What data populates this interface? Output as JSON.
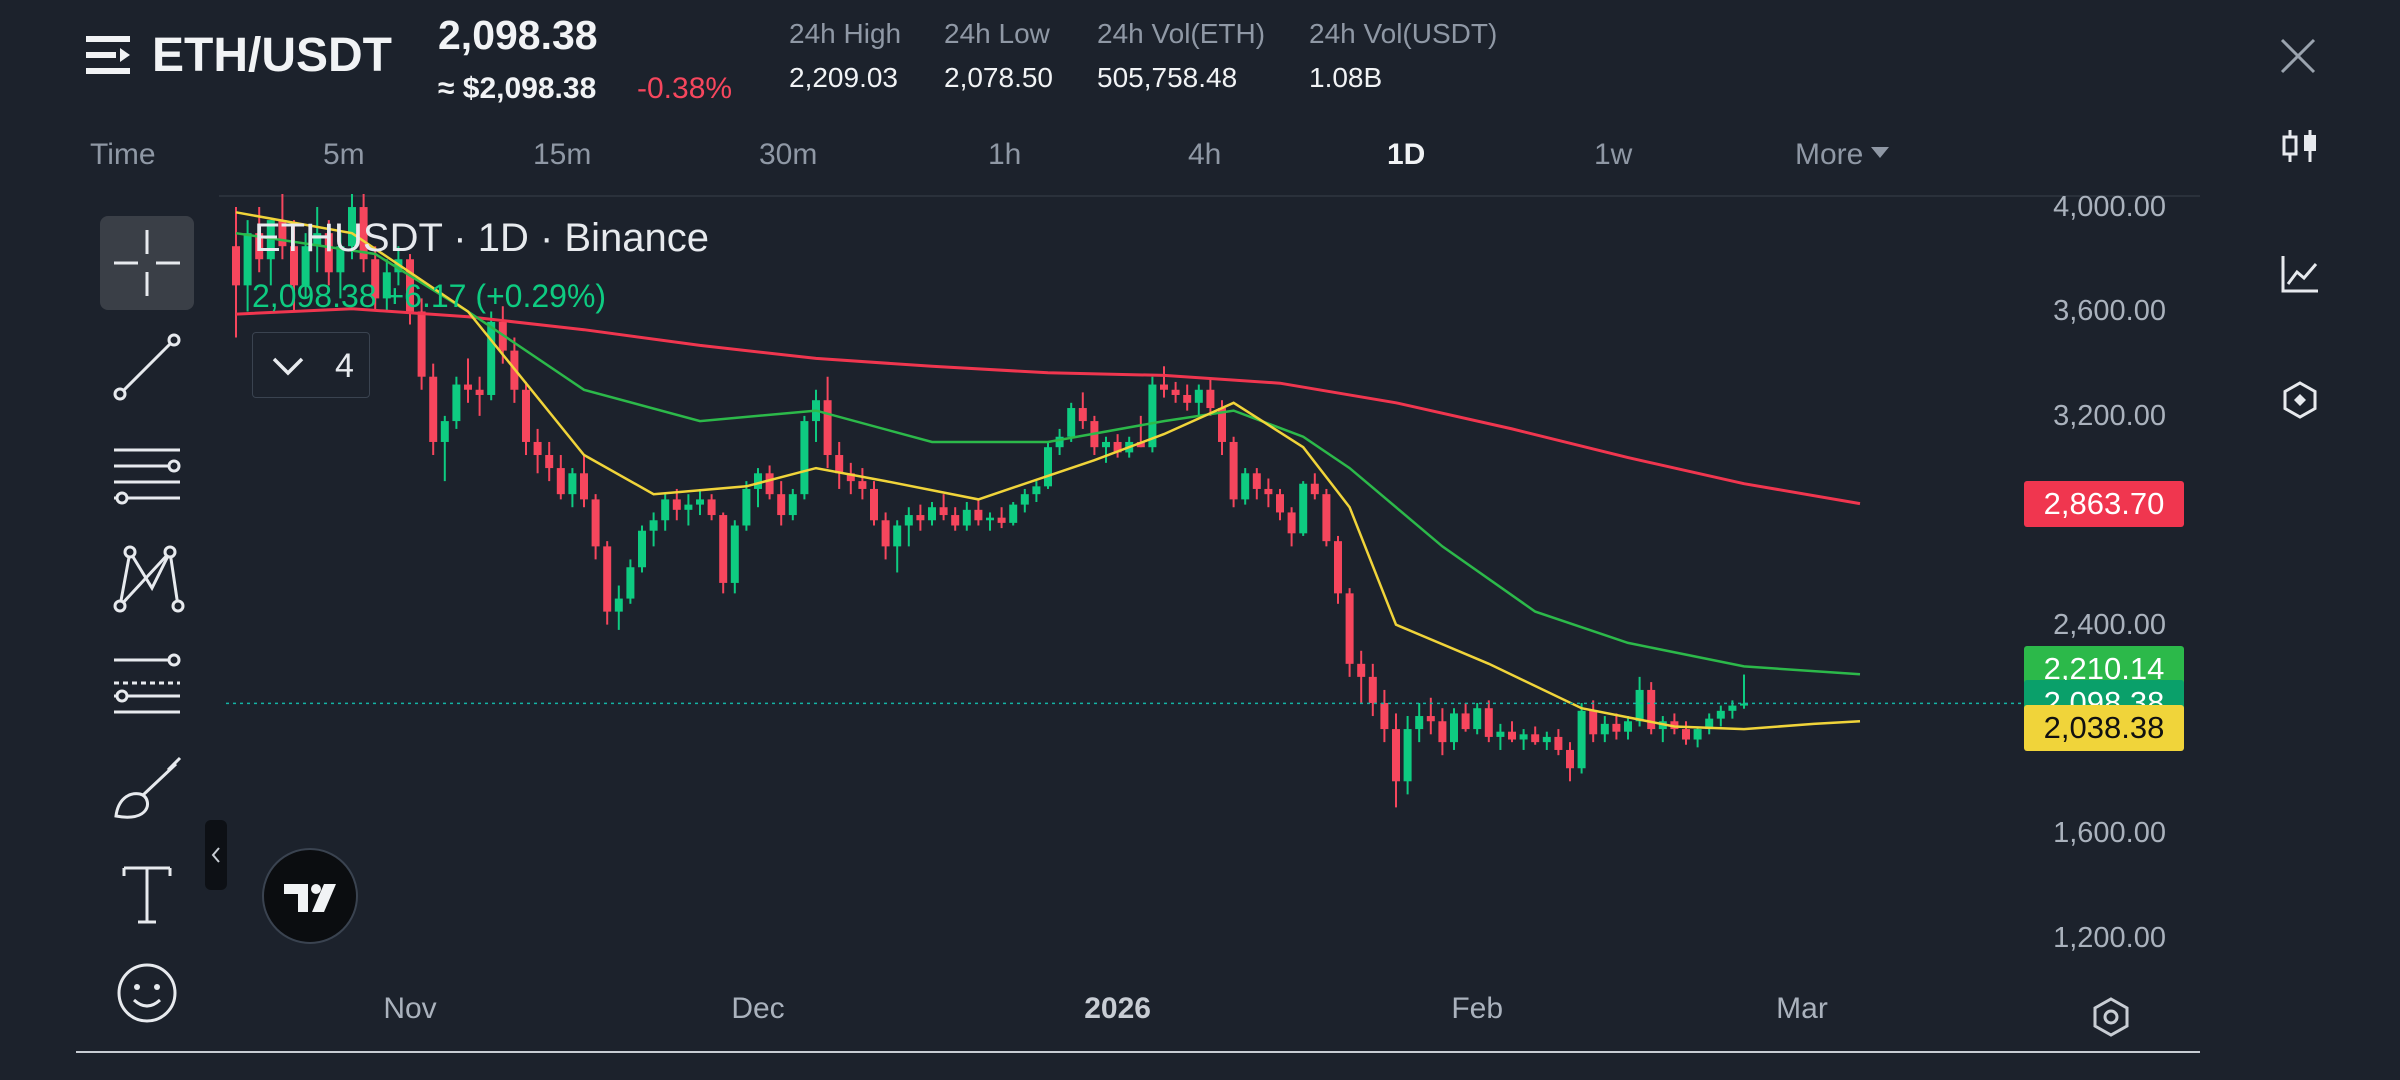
{
  "header": {
    "symbol": "ETH/USDT",
    "last_price": "2,098.38",
    "usd_price": "≈ $2,098.38",
    "change_pct": "-0.38%",
    "stats": [
      {
        "label": "24h High",
        "value": "2,209.03"
      },
      {
        "label": "24h Low",
        "value": "2,078.50"
      },
      {
        "label": "24h Vol(ETH)",
        "value": "505,758.48"
      },
      {
        "label": "24h Vol(USDT)",
        "value": "1.08B"
      }
    ]
  },
  "timeframes": {
    "items": [
      "Time",
      "5m",
      "15m",
      "30m",
      "1h",
      "4h",
      "1D",
      "1w"
    ],
    "active": "1D",
    "more_label": "More"
  },
  "chart_legend": {
    "title": "ETHUSDT · 1D · Binance",
    "ohlc_line": "2,098.38  +6.17 (+0.29%)",
    "indicator_count": "4"
  },
  "price_tags": {
    "ma_long": "2,863.70",
    "ma_mid": "2,210.14",
    "last": "2,098.38",
    "ma_short": "2,038.38"
  },
  "colors": {
    "up": "#0ecb81",
    "down": "#f6465d",
    "ma_short": "#f0d43a",
    "ma_mid": "#2cb94a",
    "ma_long": "#f0364f",
    "price_line": "#14b3a4"
  },
  "icons": {
    "left_toolbar": [
      "crosshair-icon",
      "trendline-icon",
      "parallel-lines-icon",
      "pattern-icon",
      "fib-icon",
      "brush-icon",
      "text-icon",
      "emoji-icon"
    ],
    "right_rail": [
      "candles-icon",
      "indicator-icon",
      "layers-icon"
    ]
  },
  "chart_data": {
    "type": "candlestick",
    "title": "ETHUSDT · 1D · Binance",
    "ylim": [
      1100,
      4050
    ],
    "y_ticks": [
      {
        "value": 4000,
        "label": "4,000.00"
      },
      {
        "value": 3600,
        "label": "3,600.00"
      },
      {
        "value": 3200,
        "label": "3,200.00"
      },
      {
        "value": 2400,
        "label": "2,400.00"
      },
      {
        "value": 1600,
        "label": "1,600.00"
      },
      {
        "value": 1200,
        "label": "1,200.00"
      }
    ],
    "x_ticks": [
      {
        "label": "Nov",
        "bold": false,
        "index": 15
      },
      {
        "label": "Dec",
        "bold": false,
        "index": 45
      },
      {
        "label": "2026",
        "bold": true,
        "index": 76
      },
      {
        "label": "Feb",
        "bold": false,
        "index": 107
      },
      {
        "label": "Mar",
        "bold": false,
        "index": 135
      }
    ],
    "candles": [
      [
        3850,
        4000,
        3500,
        3700
      ],
      [
        3700,
        3950,
        3600,
        3900
      ],
      [
        3900,
        4000,
        3750,
        3800
      ],
      [
        3800,
        3950,
        3700,
        3950
      ],
      [
        3950,
        4050,
        3800,
        3850
      ],
      [
        3850,
        3950,
        3600,
        3700
      ],
      [
        3700,
        3900,
        3650,
        3850
      ],
      [
        3850,
        4000,
        3750,
        3900
      ],
      [
        3900,
        3950,
        3700,
        3750
      ],
      [
        3750,
        3900,
        3650,
        3850
      ],
      [
        3850,
        4050,
        3800,
        4000
      ],
      [
        4000,
        4050,
        3750,
        3800
      ],
      [
        3800,
        3850,
        3600,
        3650
      ],
      [
        3650,
        3800,
        3600,
        3750
      ],
      [
        3750,
        3850,
        3700,
        3800
      ],
      [
        3800,
        3820,
        3550,
        3600
      ],
      [
        3600,
        3650,
        3300,
        3350
      ],
      [
        3350,
        3400,
        3050,
        3100
      ],
      [
        3100,
        3200,
        2950,
        3180
      ],
      [
        3180,
        3350,
        3150,
        3320
      ],
      [
        3320,
        3420,
        3250,
        3300
      ],
      [
        3300,
        3350,
        3200,
        3280
      ],
      [
        3280,
        3600,
        3260,
        3560
      ],
      [
        3560,
        3620,
        3400,
        3450
      ],
      [
        3450,
        3500,
        3250,
        3300
      ],
      [
        3300,
        3330,
        3050,
        3100
      ],
      [
        3100,
        3150,
        2980,
        3050
      ],
      [
        3050,
        3100,
        2950,
        3000
      ],
      [
        3000,
        3050,
        2880,
        2900
      ],
      [
        2900,
        3000,
        2850,
        2980
      ],
      [
        2980,
        3050,
        2850,
        2880
      ],
      [
        2880,
        2900,
        2650,
        2700
      ],
      [
        2700,
        2720,
        2400,
        2450
      ],
      [
        2450,
        2550,
        2380,
        2500
      ],
      [
        2500,
        2650,
        2480,
        2620
      ],
      [
        2620,
        2780,
        2600,
        2760
      ],
      [
        2760,
        2830,
        2700,
        2800
      ],
      [
        2800,
        2900,
        2760,
        2880
      ],
      [
        2880,
        2920,
        2800,
        2840
      ],
      [
        2840,
        2900,
        2780,
        2860
      ],
      [
        2860,
        2920,
        2820,
        2880
      ],
      [
        2880,
        2900,
        2800,
        2820
      ],
      [
        2820,
        2830,
        2520,
        2560
      ],
      [
        2560,
        2800,
        2520,
        2780
      ],
      [
        2780,
        2950,
        2760,
        2920
      ],
      [
        2920,
        3000,
        2850,
        2980
      ],
      [
        2980,
        3010,
        2880,
        2900
      ],
      [
        2900,
        2950,
        2780,
        2820
      ],
      [
        2820,
        2920,
        2800,
        2900
      ],
      [
        2900,
        3200,
        2880,
        3180
      ],
      [
        3180,
        3300,
        3100,
        3260
      ],
      [
        3260,
        3350,
        3000,
        3050
      ],
      [
        3050,
        3100,
        2920,
        2980
      ],
      [
        2980,
        3020,
        2900,
        2950
      ],
      [
        2950,
        3000,
        2880,
        2920
      ],
      [
        2920,
        2950,
        2780,
        2800
      ],
      [
        2800,
        2830,
        2650,
        2700
      ],
      [
        2700,
        2800,
        2600,
        2780
      ],
      [
        2780,
        2850,
        2700,
        2820
      ],
      [
        2820,
        2860,
        2760,
        2800
      ],
      [
        2800,
        2870,
        2780,
        2850
      ],
      [
        2850,
        2900,
        2800,
        2820
      ],
      [
        2820,
        2850,
        2760,
        2780
      ],
      [
        2780,
        2870,
        2760,
        2840
      ],
      [
        2840,
        2880,
        2780,
        2800
      ],
      [
        2800,
        2830,
        2760,
        2810
      ],
      [
        2810,
        2850,
        2770,
        2790
      ],
      [
        2790,
        2870,
        2780,
        2860
      ],
      [
        2860,
        2920,
        2830,
        2900
      ],
      [
        2900,
        2950,
        2870,
        2930
      ],
      [
        2930,
        3100,
        2920,
        3080
      ],
      [
        3080,
        3150,
        3050,
        3120
      ],
      [
        3120,
        3250,
        3100,
        3230
      ],
      [
        3230,
        3290,
        3150,
        3180
      ],
      [
        3180,
        3200,
        3050,
        3080
      ],
      [
        3080,
        3120,
        3020,
        3100
      ],
      [
        3100,
        3130,
        3040,
        3060
      ],
      [
        3060,
        3120,
        3040,
        3100
      ],
      [
        3100,
        3200,
        3080,
        3080
      ],
      [
        3080,
        3350,
        3060,
        3320
      ],
      [
        3320,
        3390,
        3270,
        3300
      ],
      [
        3300,
        3330,
        3250,
        3280
      ],
      [
        3280,
        3320,
        3220,
        3250
      ],
      [
        3250,
        3320,
        3200,
        3300
      ],
      [
        3300,
        3340,
        3200,
        3230
      ],
      [
        3230,
        3260,
        3050,
        3100
      ],
      [
        3100,
        3120,
        2850,
        2880
      ],
      [
        2880,
        3000,
        2860,
        2980
      ],
      [
        2980,
        3000,
        2880,
        2920
      ],
      [
        2920,
        2960,
        2850,
        2900
      ],
      [
        2900,
        2920,
        2800,
        2830
      ],
      [
        2830,
        2850,
        2700,
        2750
      ],
      [
        2750,
        2950,
        2740,
        2940
      ],
      [
        2940,
        2980,
        2880,
        2900
      ],
      [
        2900,
        2920,
        2700,
        2720
      ],
      [
        2720,
        2740,
        2480,
        2520
      ],
      [
        2520,
        2540,
        2200,
        2250
      ],
      [
        2250,
        2300,
        2100,
        2200
      ],
      [
        2200,
        2250,
        2050,
        2100
      ],
      [
        2100,
        2150,
        1950,
        2000
      ],
      [
        2000,
        2060,
        1700,
        1800
      ],
      [
        1800,
        2050,
        1750,
        2000
      ],
      [
        2000,
        2100,
        1950,
        2050
      ],
      [
        2050,
        2120,
        1980,
        2030
      ],
      [
        2030,
        2080,
        1900,
        1950
      ],
      [
        1950,
        2080,
        1920,
        2060
      ],
      [
        2060,
        2100,
        1990,
        2000
      ],
      [
        2000,
        2100,
        1980,
        2080
      ],
      [
        2080,
        2110,
        1950,
        1970
      ],
      [
        1970,
        2020,
        1920,
        1990
      ],
      [
        1990,
        2030,
        1950,
        1960
      ],
      [
        1960,
        2000,
        1920,
        1980
      ],
      [
        1980,
        2010,
        1940,
        1950
      ],
      [
        1950,
        1990,
        1920,
        1970
      ],
      [
        1970,
        2000,
        1900,
        1920
      ],
      [
        1920,
        1950,
        1800,
        1850
      ],
      [
        1850,
        2100,
        1830,
        2070
      ],
      [
        2070,
        2110,
        1950,
        1980
      ],
      [
        1980,
        2050,
        1950,
        2020
      ],
      [
        2020,
        2060,
        1960,
        1990
      ],
      [
        1990,
        2050,
        1960,
        2030
      ],
      [
        2030,
        2200,
        2010,
        2150
      ],
      [
        2150,
        2180,
        1980,
        2000
      ],
      [
        2000,
        2050,
        1950,
        2030
      ],
      [
        2030,
        2060,
        1980,
        2000
      ],
      [
        2000,
        2030,
        1940,
        1960
      ],
      [
        1960,
        2010,
        1930,
        2000
      ],
      [
        2000,
        2060,
        1980,
        2040
      ],
      [
        2040,
        2090,
        2010,
        2070
      ],
      [
        2070,
        2110,
        2040,
        2090
      ],
      [
        2090,
        2209,
        2078,
        2098
      ]
    ],
    "ma_short": [
      [
        0,
        3980
      ],
      [
        10,
        3900
      ],
      [
        20,
        3600
      ],
      [
        30,
        3050
      ],
      [
        36,
        2900
      ],
      [
        44,
        2930
      ],
      [
        50,
        3000
      ],
      [
        56,
        2950
      ],
      [
        64,
        2880
      ],
      [
        74,
        3030
      ],
      [
        80,
        3130
      ],
      [
        86,
        3250
      ],
      [
        92,
        3080
      ],
      [
        96,
        2850
      ],
      [
        100,
        2400
      ],
      [
        108,
        2250
      ],
      [
        116,
        2080
      ],
      [
        124,
        2010
      ],
      [
        130,
        2000
      ],
      [
        136,
        2020
      ],
      [
        140,
        2030
      ]
    ],
    "ma_mid": [
      [
        0,
        3900
      ],
      [
        12,
        3820
      ],
      [
        20,
        3600
      ],
      [
        30,
        3300
      ],
      [
        40,
        3180
      ],
      [
        50,
        3220
      ],
      [
        60,
        3100
      ],
      [
        70,
        3100
      ],
      [
        80,
        3180
      ],
      [
        86,
        3220
      ],
      [
        92,
        3120
      ],
      [
        96,
        3000
      ],
      [
        104,
        2700
      ],
      [
        112,
        2450
      ],
      [
        120,
        2330
      ],
      [
        130,
        2240
      ],
      [
        140,
        2210
      ]
    ],
    "ma_long": [
      [
        0,
        3590
      ],
      [
        10,
        3610
      ],
      [
        20,
        3580
      ],
      [
        30,
        3530
      ],
      [
        40,
        3470
      ],
      [
        50,
        3420
      ],
      [
        60,
        3390
      ],
      [
        70,
        3365
      ],
      [
        80,
        3355
      ],
      [
        90,
        3325
      ],
      [
        100,
        3250
      ],
      [
        110,
        3150
      ],
      [
        120,
        3040
      ],
      [
        130,
        2940
      ],
      [
        140,
        2864
      ]
    ],
    "last_price": 2098.38
  }
}
